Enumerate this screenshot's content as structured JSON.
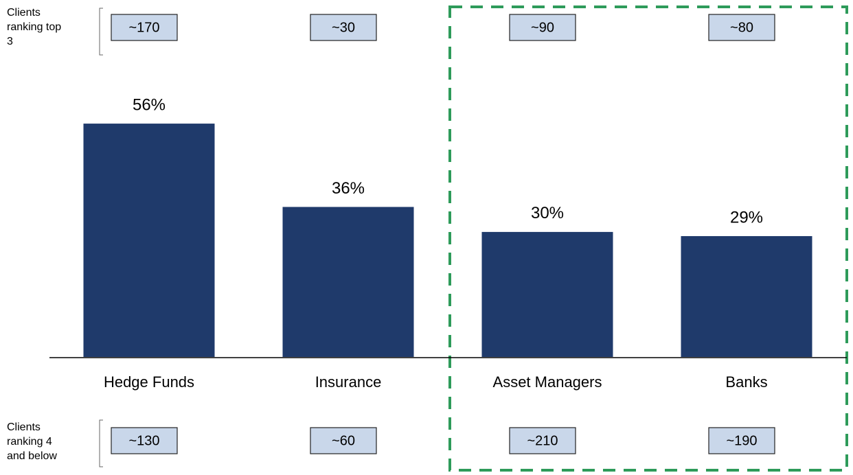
{
  "chart_data": {
    "type": "bar",
    "categories": [
      "Hedge Funds",
      "Insurance",
      "Asset Managers",
      "Banks"
    ],
    "values": [
      56,
      36,
      30,
      29
    ],
    "value_labels": [
      "56%",
      "36%",
      "30%",
      "29%"
    ],
    "color": "#1f3a6b",
    "top_label": "Clients ranking top 3",
    "top_values": [
      "~170",
      "~30",
      "~90",
      "~80"
    ],
    "bottom_label": "Clients ranking 4 and below",
    "bottom_values": [
      "~130",
      "~60",
      "~210",
      "~190"
    ]
  }
}
